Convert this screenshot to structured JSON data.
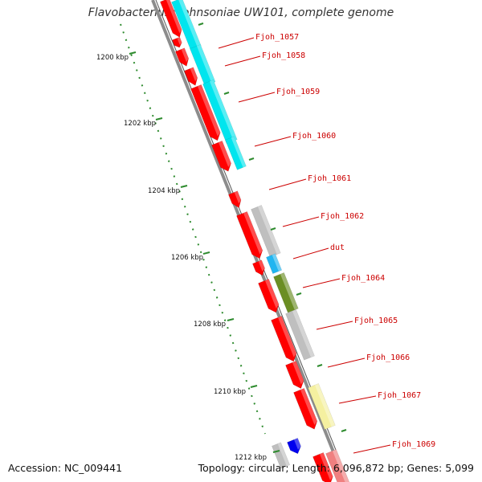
{
  "header": {
    "title": "Flavobacterium johnsoniae UW101, complete genome"
  },
  "footer": {
    "accession": "Accession: NC_009441",
    "summary": "Topology: circular; Length: 6,096,872 bp; Genes: 5,099"
  },
  "colors": {
    "cds": "#ff0000",
    "outer_cyan": "#00e5ee",
    "outer_grey": "#bfbfbf",
    "outer_olive": "#6b8e23",
    "outer_yellow": "#f5f0a0",
    "outer_pink": "#f08080",
    "outer_blue": "#1a8cff",
    "tick": "#2e8b2e",
    "backbone": "#8c8c8c",
    "label": "#cc0000"
  },
  "ticks": [
    "1200 kbp",
    "1202 kbp",
    "1204 kbp",
    "1206 kbp",
    "1208 kbp",
    "1210 kbp",
    "1212 kbp"
  ],
  "genes": [
    "Fjoh_1057",
    "Fjoh_1058",
    "Fjoh_1059",
    "Fjoh_1060",
    "Fjoh_1061",
    "Fjoh_1062",
    "dut",
    "Fjoh_1064",
    "Fjoh_1065",
    "Fjoh_1066",
    "Fjoh_1067",
    "Fjoh_1069"
  ]
}
